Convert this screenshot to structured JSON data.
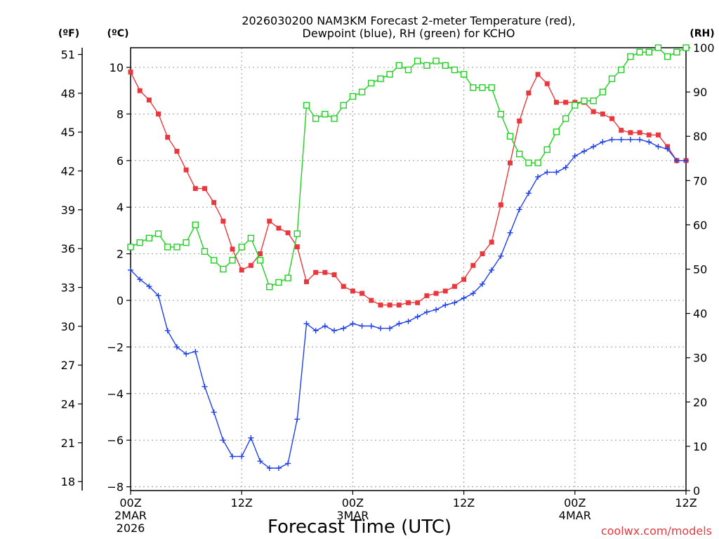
{
  "chart_data": {
    "type": "line",
    "title": "2026030200 NAM3KM Forecast 2-meter Temperature (red),",
    "subtitle": "Dewpoint (blue), RH (green) for KCHO",
    "xlabel": "Forecast Time (UTC)",
    "xlim": [
      0,
      60
    ],
    "ylim_c": [
      -8,
      11
    ],
    "ylim_rh": [
      0,
      100
    ],
    "grid": true,
    "left_f_unit": "(ºF)",
    "left_c_unit": "(ºC)",
    "right_unit": "(RH)",
    "f_ticks": [
      "51",
      "48",
      "45",
      "42",
      "39",
      "36",
      "33",
      "30",
      "27",
      "24",
      "21",
      "18"
    ],
    "c_ticks": [
      "10",
      "8",
      "6",
      "4",
      "2",
      "0",
      "−2",
      "−4",
      "−6",
      "−8"
    ],
    "rh_ticks": [
      "100",
      "90",
      "80",
      "70",
      "60",
      "50",
      "40",
      "30",
      "20",
      "10",
      "0"
    ],
    "x_ticks": [
      {
        "hour": 0,
        "label": "00Z",
        "sub": "2MAR",
        "sub2": "2026"
      },
      {
        "hour": 12,
        "label": "12Z",
        "sub": "",
        "sub2": ""
      },
      {
        "hour": 24,
        "label": "00Z",
        "sub": "3MAR",
        "sub2": ""
      },
      {
        "hour": 36,
        "label": "12Z",
        "sub": "",
        "sub2": ""
      },
      {
        "hour": 48,
        "label": "00Z",
        "sub": "4MAR",
        "sub2": ""
      },
      {
        "hour": 60,
        "label": "12Z",
        "sub": "",
        "sub2": ""
      }
    ],
    "hours": [
      0,
      1,
      2,
      3,
      4,
      5,
      6,
      7,
      8,
      9,
      10,
      11,
      12,
      13,
      14,
      15,
      16,
      17,
      18,
      19,
      20,
      21,
      22,
      23,
      24,
      25,
      26,
      27,
      28,
      29,
      30,
      31,
      32,
      33,
      34,
      35,
      36,
      37,
      38,
      39,
      40,
      41,
      42,
      43,
      44,
      45,
      46,
      47,
      48,
      49,
      50,
      51,
      52,
      53,
      54,
      55,
      56,
      57,
      58,
      59,
      60
    ],
    "series": [
      {
        "name": "2-meter Temperature",
        "unit": "C",
        "color": "#e8383d",
        "marker": "filled-square",
        "values": [
          9.8,
          9.0,
          8.6,
          8.0,
          7.0,
          6.4,
          5.6,
          4.8,
          4.8,
          4.2,
          3.4,
          2.2,
          1.3,
          1.5,
          2.0,
          3.4,
          3.1,
          2.9,
          2.3,
          0.8,
          1.2,
          1.2,
          1.1,
          0.6,
          0.4,
          0.3,
          0.0,
          -0.2,
          -0.2,
          -0.2,
          -0.1,
          -0.1,
          0.2,
          0.3,
          0.4,
          0.6,
          0.9,
          1.5,
          2.0,
          2.5,
          4.1,
          5.9,
          7.7,
          8.9,
          9.7,
          9.3,
          8.5,
          8.5,
          8.5,
          8.5,
          8.1,
          8.0,
          7.8,
          7.3,
          7.2,
          7.2,
          7.1,
          7.1,
          6.6,
          6.0,
          6.0
        ]
      },
      {
        "name": "Dewpoint",
        "unit": "C",
        "color": "#2040e8",
        "marker": "plus",
        "values": [
          1.3,
          0.9,
          0.6,
          0.2,
          -1.3,
          -2.0,
          -2.3,
          -2.2,
          -3.7,
          -4.8,
          -6.0,
          -6.7,
          -6.7,
          -5.9,
          -6.9,
          -7.2,
          -7.2,
          -7.0,
          -5.1,
          -1.0,
          -1.3,
          -1.1,
          -1.3,
          -1.2,
          -1.0,
          -1.1,
          -1.1,
          -1.2,
          -1.2,
          -1.0,
          -0.9,
          -0.7,
          -0.5,
          -0.4,
          -0.2,
          -0.1,
          0.1,
          0.3,
          0.7,
          1.3,
          1.9,
          2.9,
          3.9,
          4.6,
          5.3,
          5.5,
          5.5,
          5.7,
          6.2,
          6.4,
          6.6,
          6.8,
          6.9,
          6.9,
          6.9,
          6.9,
          6.8,
          6.6,
          6.5,
          6.0,
          6.0
        ]
      },
      {
        "name": "RH",
        "unit": "%",
        "color": "#20d020",
        "marker": "open-square",
        "values": [
          55,
          56,
          57,
          58,
          55,
          55,
          56,
          60,
          54,
          52,
          50,
          52,
          55,
          57,
          52,
          46,
          47,
          48,
          58,
          87,
          84,
          85,
          84,
          87,
          89,
          90,
          92,
          93,
          94,
          96,
          95,
          97,
          96,
          97,
          96,
          95,
          94,
          91,
          91,
          91,
          85,
          80,
          76,
          74,
          74,
          77,
          81,
          84,
          87,
          88,
          88,
          90,
          93,
          95,
          98,
          99,
          99,
          100,
          98,
          99,
          100
        ]
      }
    ]
  },
  "watermark": "coolwx.com/models"
}
